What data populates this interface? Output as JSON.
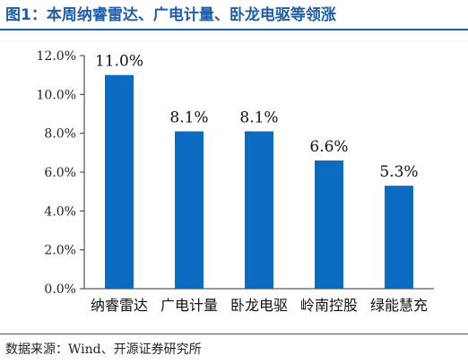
{
  "title": "图1：本周纳睿雷达、广电计量、卧龙电驱等领涨",
  "source": "数据来源：Wind、开源证券研究所",
  "colors": {
    "title": "#1f5da8",
    "bar": "#0b6bc0",
    "axis": "#333333"
  },
  "chart_data": {
    "type": "bar",
    "categories": [
      "纳睿雷达",
      "广电计量",
      "卧龙电驱",
      "岭南控股",
      "绿能慧充"
    ],
    "values": [
      11.0,
      8.1,
      8.1,
      6.6,
      5.3
    ],
    "data_labels": [
      "11.0%",
      "8.1%",
      "8.1%",
      "6.6%",
      "5.3%"
    ],
    "y_ticks": [
      "0.0%",
      "2.0%",
      "4.0%",
      "6.0%",
      "8.0%",
      "10.0%",
      "12.0%"
    ],
    "ylim": [
      0,
      12
    ],
    "grid": false,
    "title": "",
    "xlabel": "",
    "ylabel": ""
  }
}
